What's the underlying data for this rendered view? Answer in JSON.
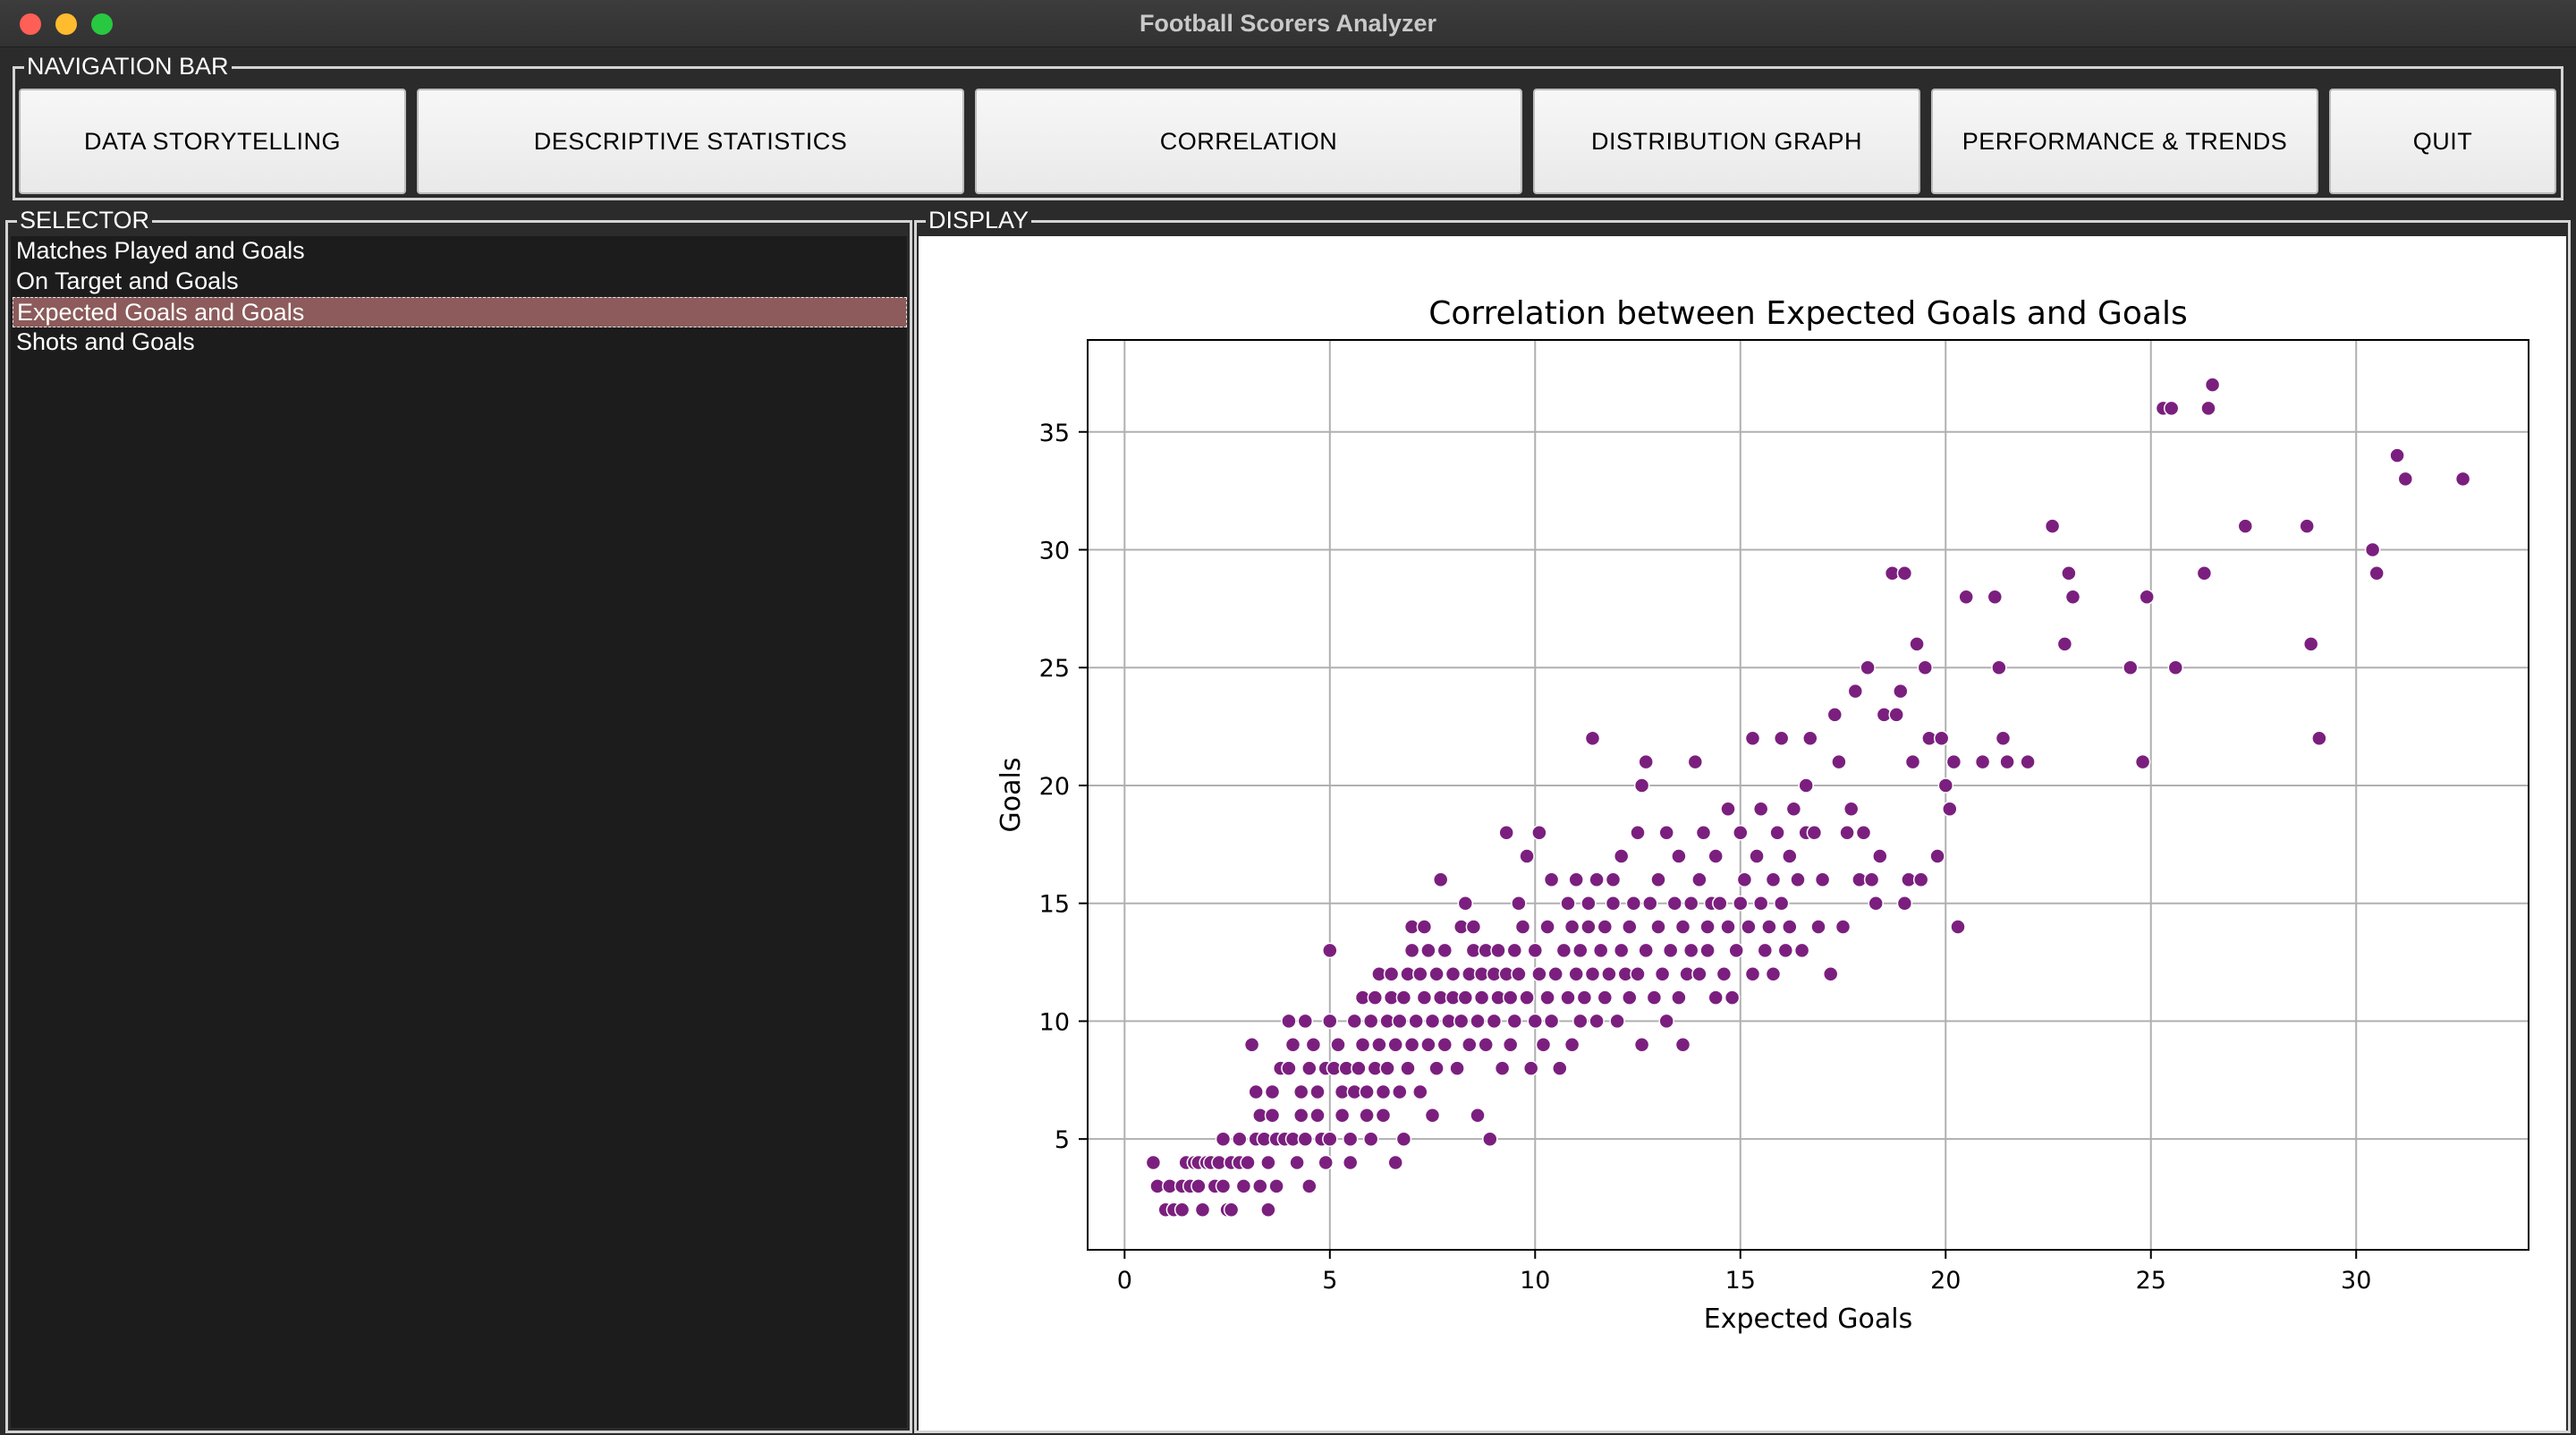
{
  "window": {
    "title": "Football Scorers Analyzer"
  },
  "navigation": {
    "label": "NAVIGATION BAR",
    "buttons": [
      {
        "label": "DATA STORYTELLING"
      },
      {
        "label": "DESCRIPTIVE STATISTICS"
      },
      {
        "label": "CORRELATION"
      },
      {
        "label": "DISTRIBUTION GRAPH"
      },
      {
        "label": "PERFORMANCE & TRENDS"
      },
      {
        "label": "QUIT"
      }
    ]
  },
  "selector": {
    "label": "SELECTOR",
    "items": [
      {
        "label": "Matches Played and Goals",
        "selected": false
      },
      {
        "label": "On Target and Goals",
        "selected": false
      },
      {
        "label": "Expected Goals and Goals",
        "selected": true
      },
      {
        "label": "Shots and Goals",
        "selected": false
      }
    ]
  },
  "display": {
    "label": "DISPLAY"
  },
  "chart_data": {
    "type": "scatter",
    "title": "Correlation between Expected Goals and Goals",
    "xlabel": "Expected Goals",
    "ylabel": "Goals",
    "xlim": [
      -0.9,
      34.2
    ],
    "ylim": [
      0.3,
      38.9
    ],
    "xticks": [
      0,
      5,
      10,
      15,
      20,
      25,
      30
    ],
    "yticks": [
      5,
      10,
      15,
      20,
      25,
      30,
      35
    ],
    "grid": true,
    "marker_color": "#7b1f7f",
    "points": [
      [
        0.7,
        4
      ],
      [
        0.8,
        3
      ],
      [
        1.0,
        2
      ],
      [
        1.1,
        3
      ],
      [
        1.2,
        2
      ],
      [
        1.4,
        3
      ],
      [
        1.4,
        2
      ],
      [
        1.5,
        4
      ],
      [
        1.6,
        3
      ],
      [
        1.7,
        4
      ],
      [
        1.8,
        4
      ],
      [
        1.8,
        3
      ],
      [
        1.9,
        2
      ],
      [
        2.0,
        4
      ],
      [
        2.1,
        4
      ],
      [
        2.2,
        3
      ],
      [
        2.3,
        4
      ],
      [
        2.4,
        5
      ],
      [
        2.4,
        3
      ],
      [
        2.5,
        2
      ],
      [
        2.6,
        4
      ],
      [
        2.6,
        2
      ],
      [
        2.8,
        5
      ],
      [
        2.8,
        4
      ],
      [
        2.9,
        3
      ],
      [
        3.0,
        4
      ],
      [
        3.1,
        9
      ],
      [
        3.2,
        5
      ],
      [
        3.2,
        7
      ],
      [
        3.3,
        6
      ],
      [
        3.3,
        3
      ],
      [
        3.4,
        5
      ],
      [
        3.5,
        4
      ],
      [
        3.5,
        2
      ],
      [
        3.6,
        6
      ],
      [
        3.6,
        7
      ],
      [
        3.7,
        5
      ],
      [
        3.7,
        3
      ],
      [
        3.8,
        8
      ],
      [
        3.9,
        5
      ],
      [
        4.0,
        10
      ],
      [
        4.0,
        8
      ],
      [
        4.1,
        9
      ],
      [
        4.1,
        5
      ],
      [
        4.2,
        4
      ],
      [
        4.3,
        6
      ],
      [
        4.3,
        7
      ],
      [
        4.4,
        10
      ],
      [
        4.4,
        5
      ],
      [
        4.5,
        8
      ],
      [
        4.5,
        3
      ],
      [
        4.6,
        9
      ],
      [
        4.7,
        6
      ],
      [
        4.7,
        7
      ],
      [
        4.8,
        5
      ],
      [
        4.9,
        8
      ],
      [
        4.9,
        4
      ],
      [
        5.0,
        13
      ],
      [
        5.0,
        10
      ],
      [
        5.0,
        5
      ],
      [
        5.1,
        8
      ],
      [
        5.2,
        9
      ],
      [
        5.3,
        6
      ],
      [
        5.3,
        7
      ],
      [
        5.4,
        8
      ],
      [
        5.5,
        5
      ],
      [
        5.5,
        4
      ],
      [
        5.6,
        10
      ],
      [
        5.6,
        7
      ],
      [
        5.7,
        8
      ],
      [
        5.8,
        11
      ],
      [
        5.8,
        9
      ],
      [
        5.9,
        6
      ],
      [
        5.9,
        7
      ],
      [
        6.0,
        10
      ],
      [
        6.0,
        5
      ],
      [
        6.1,
        11
      ],
      [
        6.1,
        8
      ],
      [
        6.2,
        9
      ],
      [
        6.2,
        12
      ],
      [
        6.3,
        7
      ],
      [
        6.3,
        6
      ],
      [
        6.4,
        10
      ],
      [
        6.4,
        8
      ],
      [
        6.5,
        11
      ],
      [
        6.5,
        12
      ],
      [
        6.6,
        9
      ],
      [
        6.6,
        4
      ],
      [
        6.7,
        7
      ],
      [
        6.7,
        10
      ],
      [
        6.8,
        11
      ],
      [
        6.8,
        5
      ],
      [
        6.9,
        12
      ],
      [
        6.9,
        8
      ],
      [
        7.0,
        13
      ],
      [
        7.0,
        9
      ],
      [
        7.0,
        14
      ],
      [
        7.1,
        10
      ],
      [
        7.2,
        12
      ],
      [
        7.2,
        7
      ],
      [
        7.3,
        11
      ],
      [
        7.3,
        14
      ],
      [
        7.4,
        9
      ],
      [
        7.4,
        13
      ],
      [
        7.5,
        10
      ],
      [
        7.5,
        6
      ],
      [
        7.6,
        12
      ],
      [
        7.6,
        8
      ],
      [
        7.7,
        16
      ],
      [
        7.7,
        11
      ],
      [
        7.8,
        13
      ],
      [
        7.8,
        9
      ],
      [
        7.9,
        10
      ],
      [
        8.0,
        12
      ],
      [
        8.0,
        11
      ],
      [
        8.1,
        8
      ],
      [
        8.2,
        14
      ],
      [
        8.2,
        10
      ],
      [
        8.3,
        15
      ],
      [
        8.3,
        11
      ],
      [
        8.4,
        12
      ],
      [
        8.4,
        9
      ],
      [
        8.5,
        13
      ],
      [
        8.5,
        14
      ],
      [
        8.6,
        10
      ],
      [
        8.6,
        6
      ],
      [
        8.7,
        11
      ],
      [
        8.7,
        12
      ],
      [
        8.8,
        13
      ],
      [
        8.8,
        9
      ],
      [
        8.9,
        5
      ],
      [
        9.0,
        10
      ],
      [
        9.0,
        12
      ],
      [
        9.1,
        11
      ],
      [
        9.1,
        13
      ],
      [
        9.2,
        8
      ],
      [
        9.3,
        18
      ],
      [
        9.3,
        12
      ],
      [
        9.4,
        9
      ],
      [
        9.4,
        11
      ],
      [
        9.5,
        13
      ],
      [
        9.5,
        10
      ],
      [
        9.6,
        15
      ],
      [
        9.6,
        12
      ],
      [
        9.7,
        14
      ],
      [
        9.8,
        17
      ],
      [
        9.8,
        11
      ],
      [
        9.9,
        8
      ],
      [
        10.0,
        13
      ],
      [
        10.0,
        10
      ],
      [
        10.1,
        12
      ],
      [
        10.1,
        18
      ],
      [
        10.2,
        9
      ],
      [
        10.3,
        11
      ],
      [
        10.3,
        14
      ],
      [
        10.4,
        16
      ],
      [
        10.4,
        10
      ],
      [
        10.5,
        12
      ],
      [
        10.6,
        8
      ],
      [
        10.7,
        13
      ],
      [
        10.8,
        15
      ],
      [
        10.8,
        11
      ],
      [
        10.9,
        14
      ],
      [
        10.9,
        9
      ],
      [
        11.0,
        16
      ],
      [
        11.0,
        12
      ],
      [
        11.1,
        13
      ],
      [
        11.1,
        10
      ],
      [
        11.2,
        11
      ],
      [
        11.3,
        15
      ],
      [
        11.3,
        14
      ],
      [
        11.4,
        22
      ],
      [
        11.4,
        12
      ],
      [
        11.5,
        16
      ],
      [
        11.5,
        10
      ],
      [
        11.6,
        13
      ],
      [
        11.7,
        11
      ],
      [
        11.7,
        14
      ],
      [
        11.8,
        12
      ],
      [
        11.9,
        16
      ],
      [
        11.9,
        15
      ],
      [
        12.0,
        10
      ],
      [
        12.1,
        13
      ],
      [
        12.1,
        17
      ],
      [
        12.2,
        12
      ],
      [
        12.3,
        14
      ],
      [
        12.3,
        11
      ],
      [
        12.4,
        15
      ],
      [
        12.5,
        18
      ],
      [
        12.5,
        12
      ],
      [
        12.6,
        20
      ],
      [
        12.6,
        9
      ],
      [
        12.7,
        21
      ],
      [
        12.7,
        13
      ],
      [
        12.8,
        15
      ],
      [
        12.9,
        11
      ],
      [
        13.0,
        14
      ],
      [
        13.0,
        16
      ],
      [
        13.1,
        12
      ],
      [
        13.2,
        18
      ],
      [
        13.2,
        10
      ],
      [
        13.3,
        13
      ],
      [
        13.4,
        15
      ],
      [
        13.5,
        11
      ],
      [
        13.5,
        17
      ],
      [
        13.6,
        14
      ],
      [
        13.6,
        9
      ],
      [
        13.7,
        12
      ],
      [
        13.8,
        15
      ],
      [
        13.8,
        13
      ],
      [
        13.9,
        21
      ],
      [
        14.0,
        16
      ],
      [
        14.0,
        12
      ],
      [
        14.1,
        18
      ],
      [
        14.2,
        14
      ],
      [
        14.2,
        13
      ],
      [
        14.3,
        15
      ],
      [
        14.4,
        11
      ],
      [
        14.4,
        17
      ],
      [
        14.5,
        15
      ],
      [
        14.6,
        12
      ],
      [
        14.7,
        14
      ],
      [
        14.7,
        19
      ],
      [
        14.8,
        11
      ],
      [
        14.9,
        13
      ],
      [
        15.0,
        18
      ],
      [
        15.0,
        15
      ],
      [
        15.1,
        16
      ],
      [
        15.2,
        14
      ],
      [
        15.3,
        22
      ],
      [
        15.3,
        12
      ],
      [
        15.4,
        17
      ],
      [
        15.5,
        15
      ],
      [
        15.5,
        19
      ],
      [
        15.6,
        13
      ],
      [
        15.7,
        14
      ],
      [
        15.8,
        16
      ],
      [
        15.8,
        12
      ],
      [
        15.9,
        18
      ],
      [
        16.0,
        15
      ],
      [
        16.0,
        22
      ],
      [
        16.1,
        13
      ],
      [
        16.2,
        17
      ],
      [
        16.2,
        14
      ],
      [
        16.3,
        19
      ],
      [
        16.4,
        16
      ],
      [
        16.5,
        13
      ],
      [
        16.6,
        18
      ],
      [
        16.6,
        20
      ],
      [
        16.7,
        22
      ],
      [
        16.8,
        18
      ],
      [
        16.9,
        14
      ],
      [
        17.0,
        16
      ],
      [
        17.2,
        12
      ],
      [
        17.3,
        23
      ],
      [
        17.4,
        21
      ],
      [
        17.5,
        14
      ],
      [
        17.6,
        18
      ],
      [
        17.7,
        19
      ],
      [
        17.8,
        24
      ],
      [
        17.9,
        16
      ],
      [
        18.0,
        18
      ],
      [
        18.1,
        25
      ],
      [
        18.2,
        16
      ],
      [
        18.3,
        15
      ],
      [
        18.4,
        17
      ],
      [
        18.5,
        23
      ],
      [
        18.7,
        29
      ],
      [
        18.8,
        23
      ],
      [
        18.9,
        24
      ],
      [
        19.0,
        29
      ],
      [
        19.0,
        15
      ],
      [
        19.1,
        16
      ],
      [
        19.2,
        21
      ],
      [
        19.3,
        26
      ],
      [
        19.4,
        16
      ],
      [
        19.5,
        25
      ],
      [
        19.6,
        22
      ],
      [
        19.8,
        17
      ],
      [
        19.9,
        22
      ],
      [
        20.0,
        20
      ],
      [
        20.1,
        19
      ],
      [
        20.2,
        21
      ],
      [
        20.3,
        14
      ],
      [
        20.5,
        28
      ],
      [
        20.9,
        21
      ],
      [
        21.2,
        28
      ],
      [
        21.3,
        25
      ],
      [
        21.4,
        22
      ],
      [
        21.5,
        21
      ],
      [
        22.0,
        21
      ],
      [
        22.6,
        31
      ],
      [
        22.9,
        26
      ],
      [
        23.0,
        29
      ],
      [
        23.1,
        28
      ],
      [
        24.5,
        25
      ],
      [
        24.8,
        21
      ],
      [
        24.9,
        28
      ],
      [
        25.3,
        36
      ],
      [
        25.5,
        36
      ],
      [
        25.6,
        25
      ],
      [
        26.3,
        29
      ],
      [
        26.4,
        36
      ],
      [
        26.5,
        37
      ],
      [
        27.3,
        31
      ],
      [
        28.8,
        31
      ],
      [
        28.9,
        26
      ],
      [
        29.1,
        22
      ],
      [
        30.4,
        30
      ],
      [
        30.5,
        29
      ],
      [
        31.0,
        34
      ],
      [
        31.2,
        33
      ],
      [
        32.6,
        33
      ]
    ]
  }
}
